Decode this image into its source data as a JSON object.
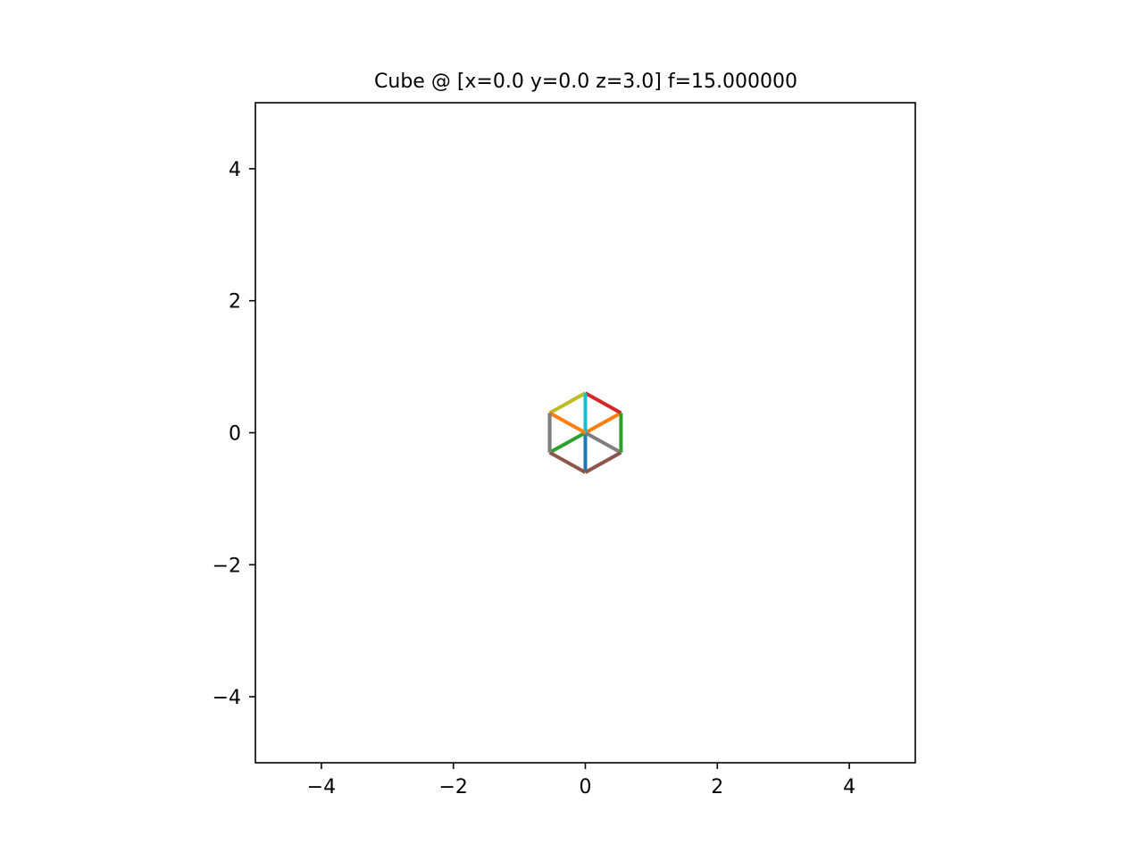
{
  "chart_data": {
    "type": "line",
    "title": "Cube @ [x=0.0 y=0.0 z=3.0] f=15.000000",
    "xlabel": "",
    "ylabel": "",
    "xlim": [
      -5,
      5
    ],
    "ylim": [
      -5,
      5
    ],
    "xticks": [
      -4,
      -2,
      0,
      2,
      4
    ],
    "yticks": [
      -4,
      -2,
      0,
      2,
      4
    ],
    "xtick_labels": [
      "−4",
      "−2",
      "0",
      "2",
      "4"
    ],
    "ytick_labels": [
      "−4",
      "−2",
      "0",
      "2",
      "4"
    ],
    "grid": false,
    "series": [
      {
        "color": "#1f77b4",
        "x": [
          0.0,
          0.0
        ],
        "y": [
          -0.6,
          0.0
        ]
      },
      {
        "color": "#ff7f0e",
        "x": [
          0.0,
          0.54
        ],
        "y": [
          0.0,
          0.3
        ]
      },
      {
        "color": "#2ca02c",
        "x": [
          0.0,
          -0.54
        ],
        "y": [
          0.0,
          -0.3
        ]
      },
      {
        "color": "#d62728",
        "x": [
          0.0,
          0.54
        ],
        "y": [
          0.6,
          0.3
        ]
      },
      {
        "color": "#9467bd",
        "x": [
          -0.54,
          -0.54
        ],
        "y": [
          0.3,
          -0.3
        ]
      },
      {
        "color": "#8c564b",
        "x": [
          -0.54,
          0.0
        ],
        "y": [
          -0.3,
          -0.6
        ]
      },
      {
        "color": "#e377c2",
        "x": [
          0.0,
          0.54
        ],
        "y": [
          -0.6,
          -0.3
        ]
      },
      {
        "color": "#7f7f7f",
        "x": [
          0.0,
          0.54
        ],
        "y": [
          0.0,
          -0.3
        ]
      },
      {
        "color": "#bcbd22",
        "x": [
          -0.54,
          0.0
        ],
        "y": [
          0.3,
          0.6
        ]
      },
      {
        "color": "#17becf",
        "x": [
          0.0,
          0.0
        ],
        "y": [
          0.6,
          0.0
        ]
      },
      {
        "color": "#ff7f0e",
        "x": [
          -0.54,
          0.0
        ],
        "y": [
          0.3,
          0.0
        ]
      },
      {
        "color": "#2ca02c",
        "x": [
          0.54,
          0.54
        ],
        "y": [
          0.3,
          -0.3
        ]
      },
      {
        "color": "#7f7f7f",
        "x": [
          -0.54,
          -0.54
        ],
        "y": [
          0.3,
          -0.3
        ]
      },
      {
        "color": "#8c564b",
        "x": [
          0.0,
          0.54
        ],
        "y": [
          -0.6,
          -0.3
        ]
      }
    ]
  }
}
